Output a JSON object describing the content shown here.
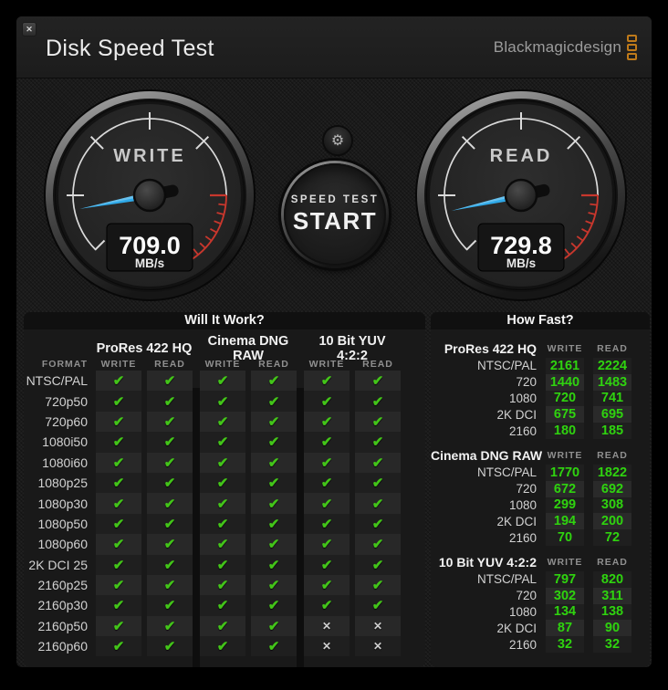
{
  "window": {
    "close_label": "✕"
  },
  "header": {
    "title": "Disk Speed Test",
    "logo_text": "Blackmagicdesign"
  },
  "gauges": {
    "write": {
      "label": "WRITE",
      "value": "709.0",
      "unit": "MB/s"
    },
    "read": {
      "label": "READ",
      "value": "729.8",
      "unit": "MB/s"
    }
  },
  "start_button": {
    "line1": "SPEED TEST",
    "line2": "START"
  },
  "settings": {
    "icon": "gear-icon",
    "glyph": "⚙"
  },
  "colors": {
    "needle_blue": "#2fa9e8",
    "warn_red": "#c8372d",
    "ok_green": "#43c419",
    "logo_orange": "#bf7a1a"
  },
  "will_it_work": {
    "title": "Will It Work?",
    "format_header": "FORMAT",
    "groups": [
      "ProRes 422 HQ",
      "Cinema DNG RAW",
      "10 Bit YUV 4:2:2"
    ],
    "sub_headers": [
      "WRITE",
      "READ"
    ],
    "check_glyph": "✔",
    "cross_glyph": "✕",
    "rows": [
      {
        "format": "NTSC/PAL",
        "results": [
          true,
          true,
          true,
          true,
          true,
          true
        ]
      },
      {
        "format": "720p50",
        "results": [
          true,
          true,
          true,
          true,
          true,
          true
        ]
      },
      {
        "format": "720p60",
        "results": [
          true,
          true,
          true,
          true,
          true,
          true
        ]
      },
      {
        "format": "1080i50",
        "results": [
          true,
          true,
          true,
          true,
          true,
          true
        ]
      },
      {
        "format": "1080i60",
        "results": [
          true,
          true,
          true,
          true,
          true,
          true
        ]
      },
      {
        "format": "1080p25",
        "results": [
          true,
          true,
          true,
          true,
          true,
          true
        ]
      },
      {
        "format": "1080p30",
        "results": [
          true,
          true,
          true,
          true,
          true,
          true
        ]
      },
      {
        "format": "1080p50",
        "results": [
          true,
          true,
          true,
          true,
          true,
          true
        ]
      },
      {
        "format": "1080p60",
        "results": [
          true,
          true,
          true,
          true,
          true,
          true
        ]
      },
      {
        "format": "2K DCI 25",
        "results": [
          true,
          true,
          true,
          true,
          true,
          true
        ]
      },
      {
        "format": "2160p25",
        "results": [
          true,
          true,
          true,
          true,
          true,
          true
        ]
      },
      {
        "format": "2160p30",
        "results": [
          true,
          true,
          true,
          true,
          true,
          true
        ]
      },
      {
        "format": "2160p50",
        "results": [
          true,
          true,
          true,
          true,
          false,
          false
        ]
      },
      {
        "format": "2160p60",
        "results": [
          true,
          true,
          true,
          true,
          false,
          false
        ]
      }
    ]
  },
  "how_fast": {
    "title": "How Fast?",
    "col_headers": [
      "WRITE",
      "READ"
    ],
    "sections": [
      {
        "name": "ProRes 422 HQ",
        "rows": [
          {
            "label": "NTSC/PAL",
            "write": "2161",
            "read": "2224"
          },
          {
            "label": "720",
            "write": "1440",
            "read": "1483"
          },
          {
            "label": "1080",
            "write": "720",
            "read": "741"
          },
          {
            "label": "2K DCI",
            "write": "675",
            "read": "695"
          },
          {
            "label": "2160",
            "write": "180",
            "read": "185"
          }
        ]
      },
      {
        "name": "Cinema DNG RAW",
        "rows": [
          {
            "label": "NTSC/PAL",
            "write": "1770",
            "read": "1822"
          },
          {
            "label": "720",
            "write": "672",
            "read": "692"
          },
          {
            "label": "1080",
            "write": "299",
            "read": "308"
          },
          {
            "label": "2K DCI",
            "write": "194",
            "read": "200"
          },
          {
            "label": "2160",
            "write": "70",
            "read": "72"
          }
        ]
      },
      {
        "name": "10 Bit YUV 4:2:2",
        "rows": [
          {
            "label": "NTSC/PAL",
            "write": "797",
            "read": "820"
          },
          {
            "label": "720",
            "write": "302",
            "read": "311"
          },
          {
            "label": "1080",
            "write": "134",
            "read": "138"
          },
          {
            "label": "2K DCI",
            "write": "87",
            "read": "90"
          },
          {
            "label": "2160",
            "write": "32",
            "read": "32"
          }
        ]
      }
    ]
  }
}
